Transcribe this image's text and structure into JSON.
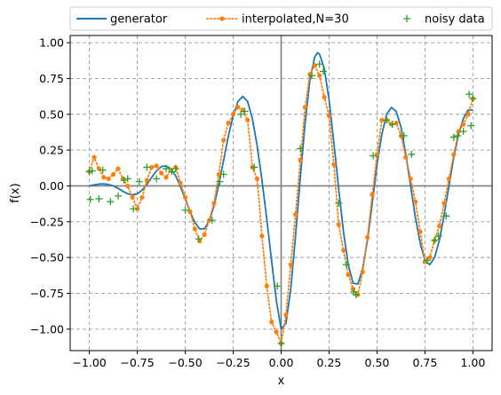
{
  "chart_data": {
    "type": "line",
    "title": "",
    "xlabel": "x",
    "ylabel": "f(x)",
    "xlim": [
      -1.1,
      1.1
    ],
    "ylim": [
      -1.15,
      1.05
    ],
    "x_ticks": [
      -1.0,
      -0.75,
      -0.5,
      -0.25,
      0.0,
      0.25,
      0.5,
      0.75,
      1.0
    ],
    "x_tick_labels": [
      "−1.00",
      "−0.75",
      "−0.50",
      "−0.25",
      "0.00",
      "0.25",
      "0.50",
      "0.75",
      "1.00"
    ],
    "y_ticks": [
      -1.0,
      -0.75,
      -0.5,
      -0.25,
      0.0,
      0.25,
      0.5,
      0.75,
      1.0
    ],
    "y_tick_labels": [
      "−1.00",
      "−0.75",
      "−0.50",
      "−0.25",
      "0.00",
      "0.25",
      "0.50",
      "0.75",
      "1.00"
    ],
    "grid": true,
    "legend_position": "top",
    "colors": {
      "generator": "#1f77b4",
      "interpolated": "#ff7f0e",
      "noisy": "#2ca02c",
      "grid": "#9a9a9a",
      "zero_lines": "#808080"
    },
    "series": [
      {
        "name": "generator",
        "style": "solid-line",
        "points": [
          [
            -1.0,
            0.0
          ],
          [
            -0.975,
            0.007
          ],
          [
            -0.95,
            0.013
          ],
          [
            -0.925,
            0.014
          ],
          [
            -0.9,
            0.01
          ],
          [
            -0.875,
            0.0
          ],
          [
            -0.85,
            -0.017
          ],
          [
            -0.825,
            -0.038
          ],
          [
            -0.8,
            -0.055
          ],
          [
            -0.775,
            -0.062
          ],
          [
            -0.75,
            -0.055
          ],
          [
            -0.725,
            -0.03
          ],
          [
            -0.7,
            0.01
          ],
          [
            -0.675,
            0.06
          ],
          [
            -0.65,
            0.105
          ],
          [
            -0.625,
            0.135
          ],
          [
            -0.6,
            0.14
          ],
          [
            -0.575,
            0.12
          ],
          [
            -0.55,
            0.07
          ],
          [
            -0.525,
            -0.005
          ],
          [
            -0.5,
            -0.09
          ],
          [
            -0.475,
            -0.18
          ],
          [
            -0.45,
            -0.255
          ],
          [
            -0.425,
            -0.3
          ],
          [
            -0.4,
            -0.3
          ],
          [
            -0.375,
            -0.245
          ],
          [
            -0.35,
            -0.14
          ],
          [
            -0.325,
            0.01
          ],
          [
            -0.3,
            0.18
          ],
          [
            -0.275,
            0.35
          ],
          [
            -0.25,
            0.49
          ],
          [
            -0.225,
            0.59
          ],
          [
            -0.2,
            0.625
          ],
          [
            -0.175,
            0.59
          ],
          [
            -0.15,
            0.47
          ],
          [
            -0.125,
            0.28
          ],
          [
            -0.1,
            0.04
          ],
          [
            -0.075,
            -0.23
          ],
          [
            -0.05,
            -0.52
          ],
          [
            -0.025,
            -0.8
          ],
          [
            0.0,
            -1.0
          ],
          [
            0.025,
            -0.96
          ],
          [
            0.05,
            -0.72
          ],
          [
            0.075,
            -0.35
          ],
          [
            0.1,
            0.06
          ],
          [
            0.125,
            0.44
          ],
          [
            0.15,
            0.74
          ],
          [
            0.175,
            0.9
          ],
          [
            0.19,
            0.93
          ],
          [
            0.2,
            0.92
          ],
          [
            0.225,
            0.82
          ],
          [
            0.25,
            0.6
          ],
          [
            0.275,
            0.3
          ],
          [
            0.3,
            -0.02
          ],
          [
            0.325,
            -0.32
          ],
          [
            0.35,
            -0.55
          ],
          [
            0.375,
            -0.68
          ],
          [
            0.4,
            -0.685
          ],
          [
            0.425,
            -0.58
          ],
          [
            0.45,
            -0.38
          ],
          [
            0.475,
            -0.12
          ],
          [
            0.5,
            0.15
          ],
          [
            0.525,
            0.36
          ],
          [
            0.55,
            0.5
          ],
          [
            0.575,
            0.548
          ],
          [
            0.6,
            0.52
          ],
          [
            0.625,
            0.41
          ],
          [
            0.65,
            0.22
          ],
          [
            0.675,
            -0.0
          ],
          [
            0.7,
            -0.22
          ],
          [
            0.725,
            -0.4
          ],
          [
            0.75,
            -0.52
          ],
          [
            0.775,
            -0.55
          ],
          [
            0.8,
            -0.5
          ],
          [
            0.825,
            -0.38
          ],
          [
            0.85,
            -0.2
          ],
          [
            0.875,
            -0.0
          ],
          [
            0.9,
            0.2
          ],
          [
            0.925,
            0.36
          ],
          [
            0.95,
            0.47
          ],
          [
            0.975,
            0.53
          ],
          [
            1.0,
            0.53
          ]
        ]
      },
      {
        "name": "interpolated,N=30",
        "style": "dotted-line-with-dots",
        "points": [
          [
            -1.0,
            0.1
          ],
          [
            -0.975,
            0.2
          ],
          [
            -0.95,
            0.12
          ],
          [
            -0.925,
            0.06
          ],
          [
            -0.9,
            0.05
          ],
          [
            -0.875,
            0.08
          ],
          [
            -0.85,
            0.12
          ],
          [
            -0.825,
            0.05
          ],
          [
            -0.8,
            0.0
          ],
          [
            -0.775,
            -0.08
          ],
          [
            -0.75,
            -0.16
          ],
          [
            -0.725,
            -0.08
          ],
          [
            -0.7,
            0.04
          ],
          [
            -0.675,
            0.13
          ],
          [
            -0.65,
            0.14
          ],
          [
            -0.625,
            0.09
          ],
          [
            -0.6,
            0.06
          ],
          [
            -0.575,
            0.11
          ],
          [
            -0.55,
            0.13
          ],
          [
            -0.525,
            0.02
          ],
          [
            -0.5,
            -0.08
          ],
          [
            -0.475,
            -0.18
          ],
          [
            -0.45,
            -0.3
          ],
          [
            -0.425,
            -0.385
          ],
          [
            -0.4,
            -0.34
          ],
          [
            -0.375,
            -0.24
          ],
          [
            -0.35,
            -0.12
          ],
          [
            -0.325,
            0.08
          ],
          [
            -0.3,
            0.32
          ],
          [
            -0.275,
            0.44
          ],
          [
            -0.25,
            0.5
          ],
          [
            -0.225,
            0.55
          ],
          [
            -0.2,
            0.53
          ],
          [
            -0.175,
            0.46
          ],
          [
            -0.15,
            0.13
          ],
          [
            -0.125,
            0.05
          ],
          [
            -0.1,
            -0.35
          ],
          [
            -0.075,
            -0.7
          ],
          [
            -0.05,
            -0.95
          ],
          [
            -0.025,
            -1.02
          ],
          [
            0.0,
            -1.1
          ],
          [
            0.025,
            -0.9
          ],
          [
            0.05,
            -0.55
          ],
          [
            0.075,
            -0.2
          ],
          [
            0.1,
            0.18
          ],
          [
            0.125,
            0.55
          ],
          [
            0.15,
            0.78
          ],
          [
            0.175,
            0.84
          ],
          [
            0.2,
            0.77
          ],
          [
            0.225,
            0.62
          ],
          [
            0.25,
            0.49
          ],
          [
            0.275,
            0.15
          ],
          [
            0.3,
            -0.27
          ],
          [
            0.325,
            -0.45
          ],
          [
            0.35,
            -0.62
          ],
          [
            0.375,
            -0.72
          ],
          [
            0.4,
            -0.76
          ],
          [
            0.425,
            -0.6
          ],
          [
            0.45,
            -0.36
          ],
          [
            0.475,
            -0.06
          ],
          [
            0.5,
            0.22
          ],
          [
            0.525,
            0.46
          ],
          [
            0.55,
            0.46
          ],
          [
            0.575,
            0.43
          ],
          [
            0.6,
            0.44
          ],
          [
            0.625,
            0.35
          ],
          [
            0.65,
            0.2
          ],
          [
            0.675,
            0.05
          ],
          [
            0.7,
            -0.11
          ],
          [
            0.725,
            -0.32
          ],
          [
            0.75,
            -0.53
          ],
          [
            0.775,
            -0.5
          ],
          [
            0.8,
            -0.38
          ],
          [
            0.825,
            -0.28
          ],
          [
            0.85,
            -0.12
          ],
          [
            0.875,
            0.05
          ],
          [
            0.9,
            0.22
          ],
          [
            0.925,
            0.38
          ],
          [
            0.95,
            0.43
          ],
          [
            0.975,
            0.5
          ],
          [
            1.0,
            0.61
          ]
        ]
      },
      {
        "name": "noisy data",
        "style": "plus-markers",
        "points": [
          [
            -1.0,
            0.1
          ],
          [
            -0.995,
            -0.095
          ],
          [
            -0.985,
            0.105
          ],
          [
            -0.95,
            -0.09
          ],
          [
            -0.93,
            0.11
          ],
          [
            -0.89,
            -0.11
          ],
          [
            -0.85,
            -0.07
          ],
          [
            -0.82,
            0.04
          ],
          [
            -0.8,
            0.05
          ],
          [
            -0.77,
            -0.16
          ],
          [
            -0.74,
            0.03
          ],
          [
            -0.7,
            0.13
          ],
          [
            -0.65,
            0.05
          ],
          [
            -0.6,
            0.12
          ],
          [
            -0.57,
            0.1
          ],
          [
            -0.55,
            0.12
          ],
          [
            -0.5,
            -0.17
          ],
          [
            -0.43,
            -0.37
          ],
          [
            -0.36,
            -0.24
          ],
          [
            -0.32,
            0.03
          ],
          [
            -0.3,
            0.08
          ],
          [
            -0.21,
            0.5
          ],
          [
            -0.19,
            0.52
          ],
          [
            -0.14,
            0.13
          ],
          [
            -0.02,
            -0.7
          ],
          [
            0.0,
            -1.1
          ],
          [
            0.1,
            0.26
          ],
          [
            0.16,
            0.77
          ],
          [
            0.2,
            0.85
          ],
          [
            0.22,
            0.8
          ],
          [
            0.3,
            -0.12
          ],
          [
            0.34,
            -0.55
          ],
          [
            0.38,
            -0.74
          ],
          [
            0.39,
            -0.76
          ],
          [
            0.48,
            0.21
          ],
          [
            0.55,
            0.46
          ],
          [
            0.58,
            0.43
          ],
          [
            0.64,
            0.35
          ],
          [
            0.68,
            0.22
          ],
          [
            0.76,
            -0.52
          ],
          [
            0.8,
            -0.38
          ],
          [
            0.82,
            -0.35
          ],
          [
            0.86,
            -0.21
          ],
          [
            0.9,
            0.34
          ],
          [
            0.92,
            0.35
          ],
          [
            0.95,
            0.38
          ],
          [
            0.98,
            0.64
          ],
          [
            0.99,
            0.42
          ],
          [
            1.0,
            0.61
          ]
        ]
      }
    ]
  }
}
